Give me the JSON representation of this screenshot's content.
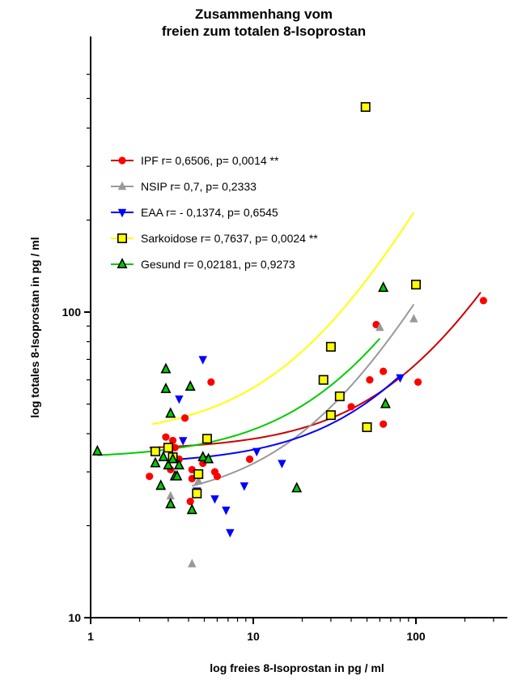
{
  "chart_data": {
    "type": "scatter",
    "title": [
      "Zusammenhang vom",
      "freien zum totalen 8-Isoprostan"
    ],
    "xlabel": "log freies 8-Isoprostan in pg / ml",
    "ylabel": "log totales 8-Isoprostan in pg / ml",
    "x_scale": "log",
    "y_scale": "log",
    "xlim": [
      1,
      400
    ],
    "ylim": [
      10,
      600
    ],
    "x_ticks": [
      "1",
      "10",
      "100"
    ],
    "y_ticks": [
      "10",
      "100"
    ],
    "legend_position": "upper-left",
    "series": [
      {
        "name": "IPF r= 0,6506, p= 0,0014 **",
        "color": "#ff0000",
        "line_color": "#cc0000",
        "marker": "circle",
        "points": [
          [
            2.3,
            29
          ],
          [
            2.9,
            39
          ],
          [
            3.1,
            30.5
          ],
          [
            3.2,
            38
          ],
          [
            3.3,
            36
          ],
          [
            3.5,
            33
          ],
          [
            3.8,
            45
          ],
          [
            4.1,
            24
          ],
          [
            4.2,
            28.5
          ],
          [
            4.2,
            30.5
          ],
          [
            4.9,
            32
          ],
          [
            5.5,
            59
          ],
          [
            5.8,
            30
          ],
          [
            6,
            29
          ],
          [
            9.5,
            33
          ],
          [
            40,
            49
          ],
          [
            52,
            60
          ],
          [
            57,
            91
          ],
          [
            63,
            43
          ],
          [
            63,
            64
          ],
          [
            103,
            59
          ],
          [
            260,
            109
          ]
        ],
        "fit": {
          "x_start": 2.3,
          "x_end": 250,
          "y_start": 36,
          "y_end": 116
        }
      },
      {
        "name": "NSIP r= 0,7, p= 0,2333",
        "color": "#999999",
        "line_color": "#999999",
        "marker": "triangle-up",
        "points": [
          [
            3.1,
            25
          ],
          [
            4.2,
            15
          ],
          [
            4.6,
            28
          ],
          [
            60,
            89
          ],
          [
            97,
            95
          ]
        ],
        "fit": {
          "x_start": 4.2,
          "x_end": 97,
          "y_start": 27,
          "y_end": 106
        }
      },
      {
        "name": "EAA r= - 0,1374, p= 0,6545",
        "color": "#0000ff",
        "line_color": "#0000ff",
        "marker": "triangle-down",
        "points": [
          [
            3.5,
            52
          ],
          [
            3.7,
            38
          ],
          [
            4.5,
            26
          ],
          [
            4.9,
            70
          ],
          [
            5.8,
            24.5
          ],
          [
            6.8,
            22.5
          ],
          [
            7.2,
            19
          ],
          [
            8.8,
            27
          ],
          [
            10.5,
            35
          ],
          [
            15,
            32
          ],
          [
            80,
            61
          ]
        ],
        "fit": {
          "x_start": 3.5,
          "x_end": 80,
          "y_start": 33,
          "y_end": 62
        }
      },
      {
        "name": "Sarkoidose r= 0,7637, p= 0,0024 **",
        "color": "#ffff00",
        "line_color": "#ffff00",
        "marker": "square",
        "points": [
          [
            2.5,
            35
          ],
          [
            3,
            36
          ],
          [
            3.2,
            33.5
          ],
          [
            4.5,
            25.5
          ],
          [
            4.6,
            29.5
          ],
          [
            5.2,
            38.5
          ],
          [
            27,
            60
          ],
          [
            30,
            46
          ],
          [
            30,
            77
          ],
          [
            34,
            53
          ],
          [
            49,
            469
          ],
          [
            50,
            42
          ],
          [
            100,
            123
          ]
        ],
        "fit": {
          "x_start": 2.4,
          "x_end": 97,
          "y_start": 43,
          "y_end": 212
        }
      },
      {
        "name": "Gesund r= 0,02181, p= 0,9273",
        "color": "#00cc00",
        "line_color": "#00cc00",
        "marker": "triangle-up",
        "points": [
          [
            1.1,
            35
          ],
          [
            2.5,
            32
          ],
          [
            2.7,
            27
          ],
          [
            2.8,
            33.5
          ],
          [
            2.9,
            65
          ],
          [
            2.9,
            56
          ],
          [
            3,
            31.5
          ],
          [
            3.1,
            46.5
          ],
          [
            3.1,
            23.5
          ],
          [
            3.2,
            33
          ],
          [
            3.3,
            29
          ],
          [
            3.4,
            29
          ],
          [
            3.5,
            31.5
          ],
          [
            4.1,
            57
          ],
          [
            4.2,
            22.5
          ],
          [
            4.9,
            33.5
          ],
          [
            5.3,
            33
          ],
          [
            18.5,
            26.5
          ],
          [
            63,
            120
          ],
          [
            65,
            50
          ]
        ],
        "fit": {
          "x_start": 1.1,
          "x_end": 60,
          "y_start": 34,
          "y_end": 82
        }
      }
    ]
  }
}
